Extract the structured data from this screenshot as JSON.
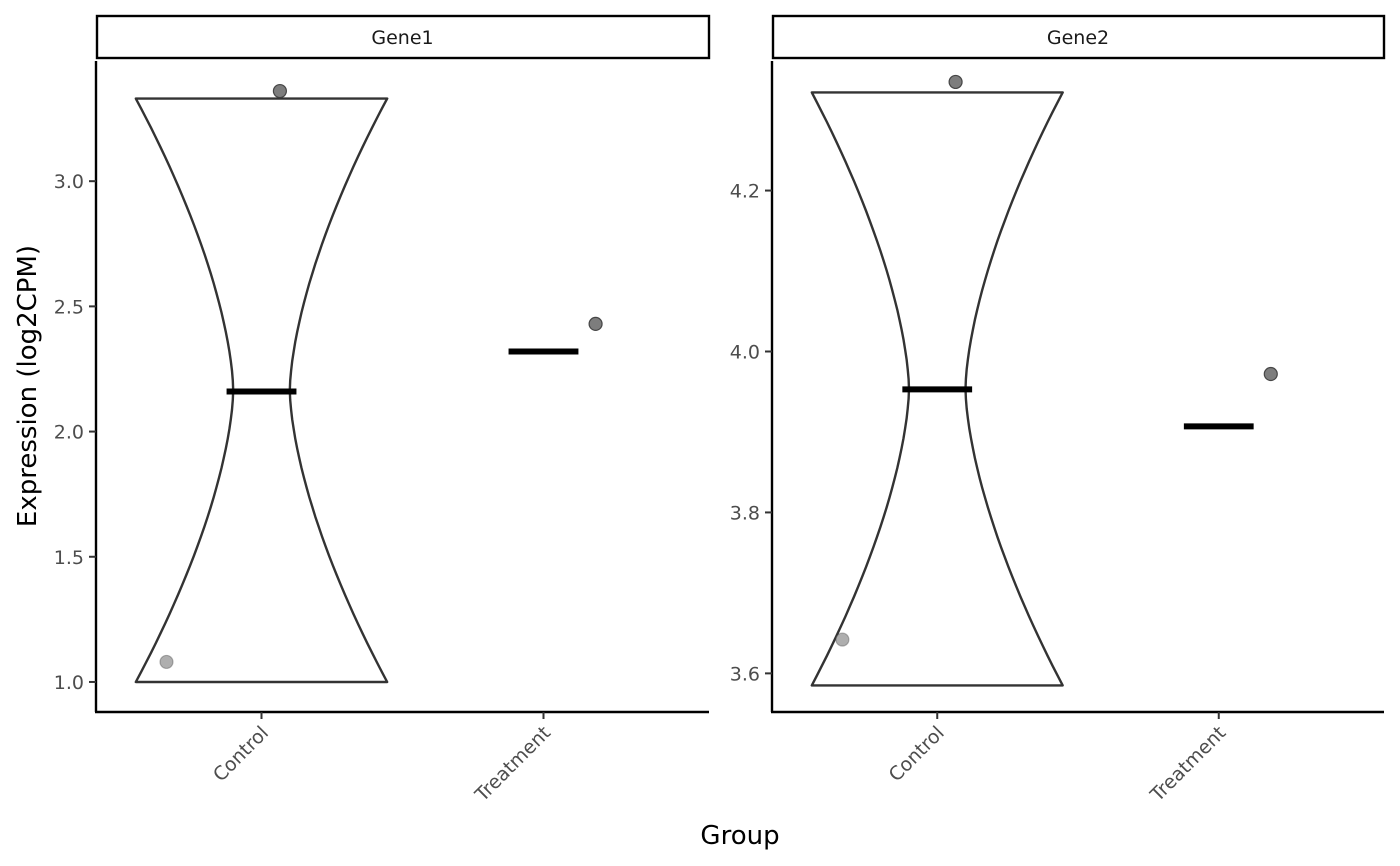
{
  "chart_data": {
    "type": "violin",
    "xlabel": "Group",
    "ylabel": "Expression (log2CPM)",
    "categories": [
      "Control",
      "Treatment"
    ],
    "panels": [
      {
        "name": "Gene1",
        "ylim": [
          0.88,
          3.48
        ],
        "yticks": [
          1.0,
          1.5,
          2.0,
          2.5,
          3.0
        ],
        "ytick_labels": [
          "1.0",
          "1.5",
          "2.0",
          "2.5",
          "3.0"
        ],
        "violin": {
          "category": "Control",
          "min": 1.0,
          "max": 3.33
        },
        "medians": [
          {
            "category": "Control",
            "value": 2.16
          },
          {
            "category": "Treatment",
            "value": 2.32
          }
        ],
        "points": [
          {
            "category": "Control",
            "value": 3.36,
            "shade": "dark"
          },
          {
            "category": "Control",
            "value": 1.08,
            "shade": "light"
          },
          {
            "category": "Treatment",
            "value": 2.43,
            "shade": "dark"
          }
        ]
      },
      {
        "name": "Gene2",
        "ylim": [
          3.552,
          4.361
        ],
        "yticks": [
          3.6,
          3.8,
          4.0,
          4.2
        ],
        "ytick_labels": [
          "3.6",
          "3.8",
          "4.0",
          "4.2"
        ],
        "violin": {
          "category": "Control",
          "min": 3.585,
          "max": 4.322
        },
        "medians": [
          {
            "category": "Control",
            "value": 3.953
          },
          {
            "category": "Treatment",
            "value": 3.907
          }
        ],
        "points": [
          {
            "category": "Control",
            "value": 4.335,
            "shade": "dark"
          },
          {
            "category": "Control",
            "value": 3.642,
            "shade": "light"
          },
          {
            "category": "Treatment",
            "value": 3.972,
            "shade": "dark"
          }
        ]
      }
    ],
    "colors": {
      "violin_outline": "#333333",
      "median": "#000000",
      "point_dark": "#666666",
      "point_light": "#9a9a9a",
      "point_edge": "#3a3a3a"
    }
  }
}
